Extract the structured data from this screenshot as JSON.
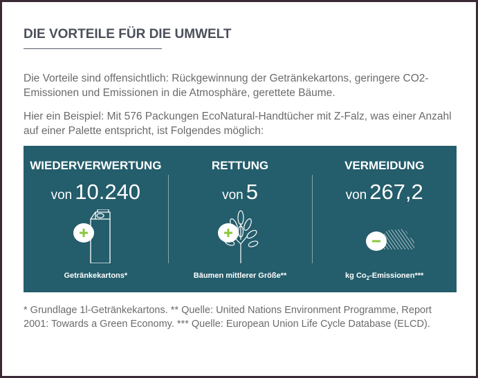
{
  "colors": {
    "panel": "#245d6b",
    "accent_green": "#8cc63f",
    "title": "#4a4f5a"
  },
  "modal": {
    "title": "DIE VORTEILE FÜR DIE UMWELT",
    "paragraphs": [
      "Die Vorteile sind offensichtlich: Rückgewinnung der Getränkekartons, geringere CO2-Emissionen und Emissionen in die Atmosphäre, gerettete Bäume.",
      "Hier ein Beispiel: Mit 576 Packungen EcoNatural-Handtücher mit Z-Falz, was einer Anzahl auf einer Palette entspricht, ist Folgendes möglich:"
    ],
    "stats": [
      {
        "heading": "WIEDERVERWERTUNG",
        "prefix": "von",
        "value": "10.240",
        "label": "Getränkekartons*",
        "icon": "carton-plus-icon"
      },
      {
        "heading": "RETTUNG",
        "prefix": "von",
        "value": "5",
        "label": "Bäumen mittlerer Größe**",
        "icon": "tree-plus-icon"
      },
      {
        "heading": "VERMEIDUNG",
        "prefix": "von",
        "value": "267,2",
        "label_pre": "kg Co",
        "label_sub": "2",
        "label_post": "-Emissionen***",
        "icon": "cloud-minus-icon"
      }
    ],
    "footnote": "* Grundlage 1l-Getränkekartons. ** Quelle: United Nations Environment Programme, Report 2001: Towards a Green Economy. *** Quelle: European Union Life Cycle Database (ELCD)."
  }
}
